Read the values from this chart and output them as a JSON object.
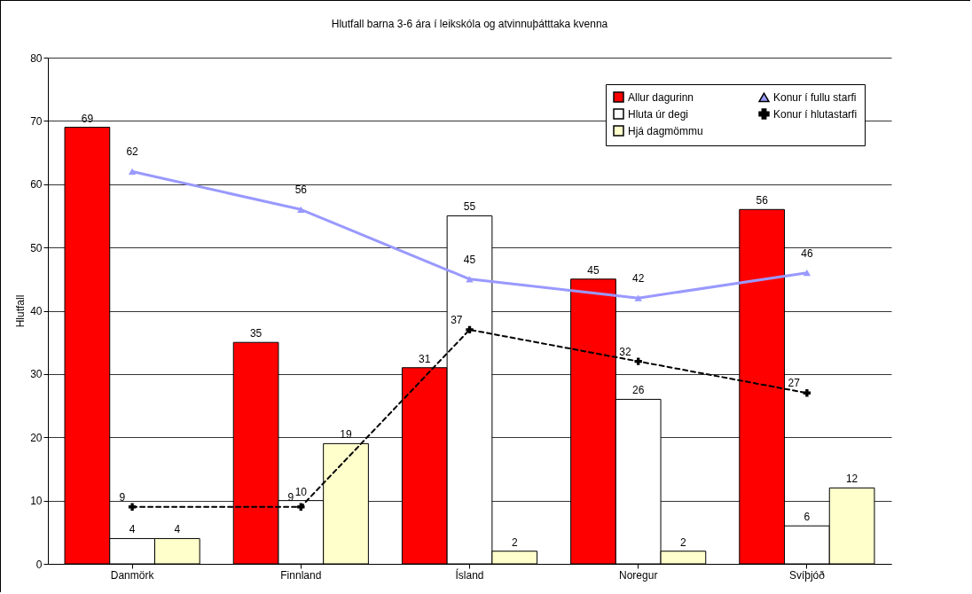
{
  "chart_data": {
    "type": "bar",
    "title": "Hlutfall barna 3-6 ára í leikskóla og atvinnuþátttaka kvenna",
    "ylabel": "Hlutfall",
    "categories": [
      "Danmörk",
      "Finnland",
      "Ísland",
      "Noregur",
      "Svíþjóð"
    ],
    "series": [
      {
        "name": "Allur dagurinn",
        "color": "#ff0000",
        "values": [
          69,
          35,
          31,
          45,
          56
        ]
      },
      {
        "name": "Hluta úr degi",
        "color": "#ffffff",
        "values": [
          4,
          10,
          55,
          26,
          6
        ]
      },
      {
        "name": "Hjá dagmömmu",
        "color": "#ffffcc",
        "values": [
          4,
          19,
          2,
          2,
          12
        ]
      },
      {
        "name": "Konur í fullu starfi",
        "type": "line",
        "color": "#9999ff",
        "marker": "triangle",
        "line_style": "solid",
        "values": [
          62,
          56,
          45,
          42,
          46
        ]
      },
      {
        "name": "Konur í hlutastarfi",
        "type": "line",
        "color": "#000000",
        "marker": "cross",
        "line_style": "dashed",
        "values": [
          9,
          9,
          37,
          32,
          27
        ]
      }
    ],
    "ylim": [
      0,
      80
    ],
    "yticks": [
      0,
      10,
      20,
      30,
      40,
      50,
      60,
      70,
      80
    ],
    "grid": "y",
    "legend": "top right",
    "data_labels": true
  }
}
